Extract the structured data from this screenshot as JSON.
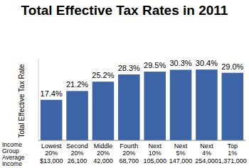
{
  "chart_data": {
    "type": "bar",
    "title": "Total Effective Tax Rates in 2011",
    "y_label": "Total Effective Tax Rate",
    "categories": [
      "Lowest 20%",
      "Second 20%",
      "Middle 20%",
      "Fourth 20%",
      "Next 10%",
      "Next 5%",
      "Next 4%",
      "Top 1%"
    ],
    "values": [
      17.4,
      21.2,
      25.2,
      28.3,
      29.5,
      30.3,
      30.4,
      29.0
    ],
    "value_labels": [
      "17.4%",
      "21.2%",
      "25.2%",
      "28.3%",
      "29.5%",
      "30.3%",
      "30.4%",
      "29.0%"
    ],
    "category_row_label": "Income Group",
    "income_row": {
      "label": "Average Income",
      "values": [
        "$13,000",
        "26,100",
        "42,000",
        "68,700",
        "105,000",
        "147,000",
        "254,000",
        "1,371,000"
      ]
    },
    "color": "#3d64a6",
    "ylim": [
      0,
      35
    ],
    "data_labels": true,
    "tick_labels": "x",
    "grid": false
  }
}
